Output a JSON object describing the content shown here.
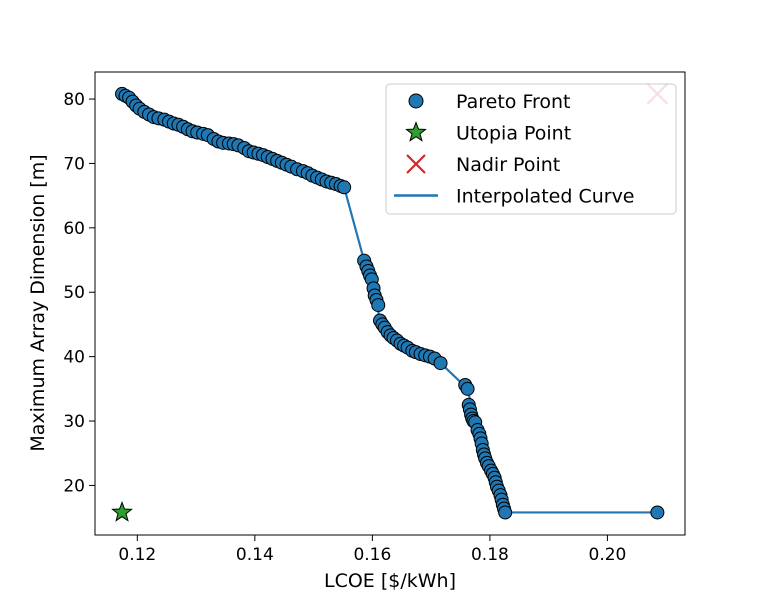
{
  "chart_data": {
    "type": "scatter",
    "xlabel": "LCOE [$/kWh]",
    "ylabel": "Maximum Array Dimension [m]",
    "xlim": [
      0.1128,
      0.2132
    ],
    "ylim": [
      12.3,
      84.2
    ],
    "xticks": [
      0.12,
      0.14,
      0.16,
      0.18,
      0.2
    ],
    "xtick_labels": [
      "0.12",
      "0.14",
      "0.16",
      "0.18",
      "0.20"
    ],
    "yticks": [
      20,
      30,
      40,
      50,
      60,
      70,
      80
    ],
    "ytick_labels": [
      "20",
      "30",
      "40",
      "50",
      "60",
      "70",
      "80"
    ],
    "grid": false,
    "legend": {
      "position": "top-right",
      "entries": [
        {
          "label": "Pareto Front",
          "marker": "circle",
          "color": "#1f77b4"
        },
        {
          "label": "Utopia Point",
          "marker": "star",
          "color": "#2ca02c"
        },
        {
          "label": "Nadir Point",
          "marker": "x",
          "color": "#d62728"
        },
        {
          "label": "Interpolated Curve",
          "marker": "line",
          "color": "#1f77b4"
        }
      ]
    },
    "series": [
      {
        "name": "Pareto Front",
        "kind": "scatter",
        "color": "#1f77b4",
        "points": [
          [
            0.1174,
            80.8
          ],
          [
            0.118,
            80.5
          ],
          [
            0.1186,
            80.2
          ],
          [
            0.1192,
            79.6
          ],
          [
            0.1198,
            79.0
          ],
          [
            0.1204,
            78.5
          ],
          [
            0.1212,
            78.0
          ],
          [
            0.122,
            77.6
          ],
          [
            0.1228,
            77.2
          ],
          [
            0.1236,
            77.0
          ],
          [
            0.1246,
            76.8
          ],
          [
            0.1254,
            76.5
          ],
          [
            0.1262,
            76.2
          ],
          [
            0.127,
            76.0
          ],
          [
            0.1278,
            75.7
          ],
          [
            0.1286,
            75.3
          ],
          [
            0.1294,
            75.0
          ],
          [
            0.1302,
            74.8
          ],
          [
            0.1312,
            74.6
          ],
          [
            0.132,
            74.4
          ],
          [
            0.133,
            73.8
          ],
          [
            0.1338,
            73.4
          ],
          [
            0.1346,
            73.2
          ],
          [
            0.1356,
            73.1
          ],
          [
            0.1364,
            73.0
          ],
          [
            0.1372,
            72.8
          ],
          [
            0.1382,
            72.4
          ],
          [
            0.139,
            71.9
          ],
          [
            0.1398,
            71.7
          ],
          [
            0.1406,
            71.5
          ],
          [
            0.1414,
            71.3
          ],
          [
            0.1422,
            71.0
          ],
          [
            0.143,
            70.7
          ],
          [
            0.1438,
            70.4
          ],
          [
            0.1446,
            70.1
          ],
          [
            0.1454,
            69.8
          ],
          [
            0.1462,
            69.5
          ],
          [
            0.1472,
            69.1
          ],
          [
            0.1482,
            68.8
          ],
          [
            0.149,
            68.5
          ],
          [
            0.1498,
            68.1
          ],
          [
            0.1506,
            67.8
          ],
          [
            0.1514,
            67.5
          ],
          [
            0.1522,
            67.2
          ],
          [
            0.153,
            67.0
          ],
          [
            0.1538,
            66.8
          ],
          [
            0.1546,
            66.5
          ],
          [
            0.1552,
            66.3
          ],
          [
            0.1586,
            54.9
          ],
          [
            0.159,
            54.0
          ],
          [
            0.1593,
            53.3
          ],
          [
            0.1596,
            52.6
          ],
          [
            0.1599,
            52.0
          ],
          [
            0.1602,
            50.6
          ],
          [
            0.1604,
            49.5
          ],
          [
            0.1607,
            48.8
          ],
          [
            0.161,
            48.0
          ],
          [
            0.1613,
            45.6
          ],
          [
            0.1617,
            45.0
          ],
          [
            0.1621,
            44.5
          ],
          [
            0.1626,
            43.8
          ],
          [
            0.1631,
            43.3
          ],
          [
            0.1636,
            42.9
          ],
          [
            0.1642,
            42.5
          ],
          [
            0.1648,
            42.0
          ],
          [
            0.1654,
            41.7
          ],
          [
            0.166,
            41.4
          ],
          [
            0.1668,
            40.9
          ],
          [
            0.1674,
            40.7
          ],
          [
            0.1682,
            40.4
          ],
          [
            0.169,
            40.2
          ],
          [
            0.1698,
            40.0
          ],
          [
            0.1706,
            39.7
          ],
          [
            0.1716,
            39.0
          ],
          [
            0.1758,
            35.6
          ],
          [
            0.1762,
            35.0
          ],
          [
            0.1764,
            32.5
          ],
          [
            0.1766,
            31.8
          ],
          [
            0.1768,
            31.0
          ],
          [
            0.177,
            30.4
          ],
          [
            0.1772,
            30.0
          ],
          [
            0.1775,
            29.8
          ],
          [
            0.1779,
            28.6
          ],
          [
            0.1782,
            28.0
          ],
          [
            0.1784,
            27.3
          ],
          [
            0.1786,
            26.5
          ],
          [
            0.1788,
            25.5
          ],
          [
            0.179,
            24.8
          ],
          [
            0.1792,
            24.2
          ],
          [
            0.1795,
            23.5
          ],
          [
            0.1798,
            23.0
          ],
          [
            0.1802,
            22.3
          ],
          [
            0.1805,
            21.8
          ],
          [
            0.1808,
            21.2
          ],
          [
            0.181,
            20.5
          ],
          [
            0.1812,
            19.8
          ],
          [
            0.1815,
            19.2
          ],
          [
            0.1818,
            18.5
          ],
          [
            0.182,
            17.8
          ],
          [
            0.1822,
            17.0
          ],
          [
            0.1824,
            16.4
          ],
          [
            0.1826,
            15.8
          ],
          [
            0.2085,
            15.8
          ]
        ]
      },
      {
        "name": "Utopia Point",
        "kind": "star",
        "color": "#2ca02c",
        "points": [
          [
            0.1174,
            15.8
          ]
        ]
      },
      {
        "name": "Nadir Point",
        "kind": "x",
        "color": "#d62728",
        "points": [
          [
            0.2085,
            80.8
          ]
        ]
      },
      {
        "name": "Interpolated Curve",
        "kind": "line",
        "color": "#1f77b4",
        "points": [
          [
            0.1174,
            80.8
          ],
          [
            0.121,
            78.1
          ],
          [
            0.126,
            76.3
          ],
          [
            0.13,
            74.9
          ],
          [
            0.134,
            73.3
          ],
          [
            0.138,
            72.5
          ],
          [
            0.142,
            71.1
          ],
          [
            0.146,
            69.6
          ],
          [
            0.15,
            68.0
          ],
          [
            0.1552,
            66.3
          ],
          [
            0.1586,
            54.9
          ],
          [
            0.16,
            51.5
          ],
          [
            0.1613,
            45.6
          ],
          [
            0.164,
            42.6
          ],
          [
            0.168,
            40.5
          ],
          [
            0.1716,
            39.0
          ],
          [
            0.1762,
            35.0
          ],
          [
            0.1775,
            29.8
          ],
          [
            0.18,
            22.6
          ],
          [
            0.1826,
            15.8
          ],
          [
            0.2085,
            15.8
          ]
        ]
      }
    ]
  }
}
